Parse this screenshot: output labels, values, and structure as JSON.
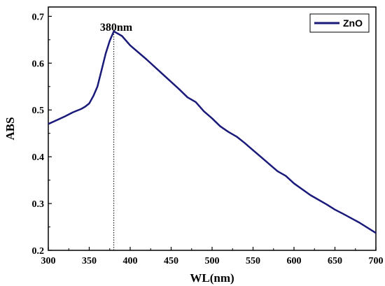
{
  "chart_data": {
    "type": "line",
    "title": "",
    "xlabel": "WL(nm)",
    "ylabel": "ABS",
    "xlim": [
      300,
      700
    ],
    "ylim": [
      0.2,
      0.72
    ],
    "xticks": [
      300,
      350,
      400,
      450,
      500,
      550,
      600,
      650,
      700
    ],
    "yticks": [
      0.2,
      0.3,
      0.4,
      0.5,
      0.6,
      0.7
    ],
    "ytick_labels": [
      "0.2",
      "0.3",
      "0.4",
      "0.5",
      "0.6",
      "0.7"
    ],
    "grid": false,
    "legend_position": "top-right",
    "series": [
      {
        "name": "ZnO",
        "color": "#1a1a7a",
        "x": [
          300,
          310,
          320,
          330,
          340,
          345,
          350,
          355,
          360,
          365,
          370,
          375,
          380,
          390,
          400,
          420,
          440,
          460,
          470,
          480,
          490,
          500,
          510,
          520,
          530,
          540,
          550,
          560,
          570,
          580,
          590,
          600,
          620,
          640,
          650,
          660,
          680,
          700
        ],
        "y": [
          0.47,
          0.478,
          0.486,
          0.495,
          0.502,
          0.507,
          0.514,
          0.53,
          0.55,
          0.585,
          0.62,
          0.648,
          0.668,
          0.658,
          0.638,
          0.608,
          0.576,
          0.544,
          0.527,
          0.517,
          0.497,
          0.482,
          0.465,
          0.453,
          0.443,
          0.429,
          0.414,
          0.399,
          0.384,
          0.369,
          0.359,
          0.343,
          0.318,
          0.298,
          0.287,
          0.278,
          0.259,
          0.237
        ]
      }
    ],
    "annotations": [
      {
        "text": "380nm",
        "x": 380,
        "line_from_y": 0.2,
        "line_to_y": 0.668,
        "line_style": "dotted"
      }
    ]
  }
}
